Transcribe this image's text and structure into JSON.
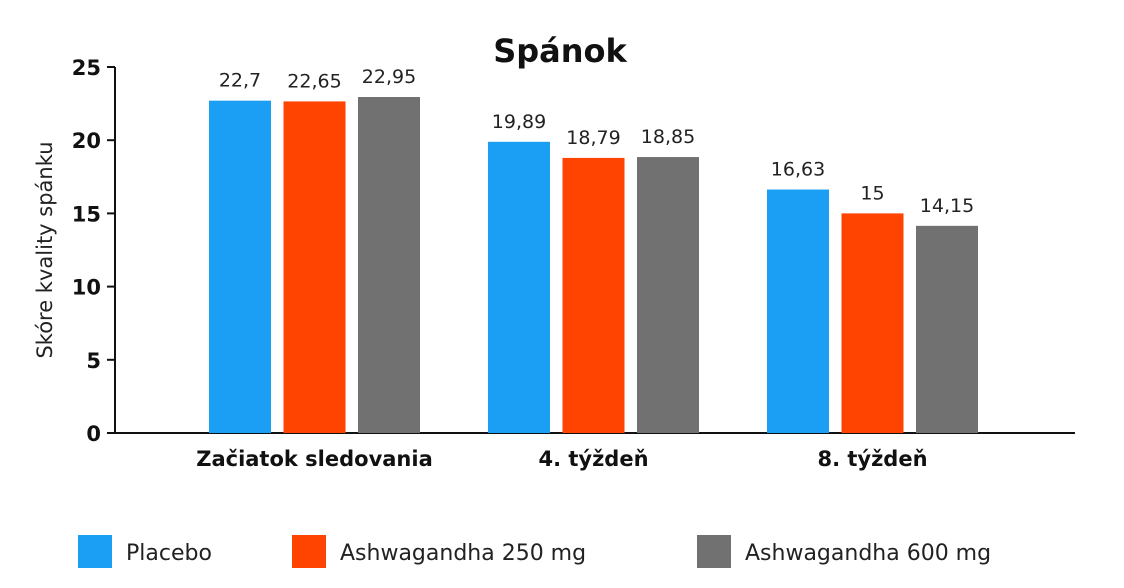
{
  "chart_data": {
    "type": "bar",
    "title": "Spánok",
    "xlabel": "",
    "ylabel": "Skóre kvality spánku",
    "ylim": [
      0,
      25
    ],
    "yticks": [
      "0",
      "5",
      "10",
      "15",
      "20",
      "25"
    ],
    "grid": false,
    "legend_placement": "bottom",
    "categories": [
      "Začiatok sledovania",
      "4. týždeň",
      "8. týždeň"
    ],
    "series": [
      {
        "name": "Placebo",
        "color": "#1a9ff5",
        "values": [
          22.7,
          19.89,
          16.63
        ],
        "labels": [
          "22,7",
          "19,89",
          "16,63"
        ]
      },
      {
        "name": "Ashwagandha 250 mg",
        "color": "#ff4300",
        "values": [
          22.65,
          18.79,
          15
        ],
        "labels": [
          "22,65",
          "18,79",
          "15"
        ]
      },
      {
        "name": "Ashwagandha 600 mg",
        "color": "#717171",
        "values": [
          22.95,
          18.85,
          14.15
        ],
        "labels": [
          "22,95",
          "18,85",
          "14,15"
        ]
      }
    ]
  }
}
